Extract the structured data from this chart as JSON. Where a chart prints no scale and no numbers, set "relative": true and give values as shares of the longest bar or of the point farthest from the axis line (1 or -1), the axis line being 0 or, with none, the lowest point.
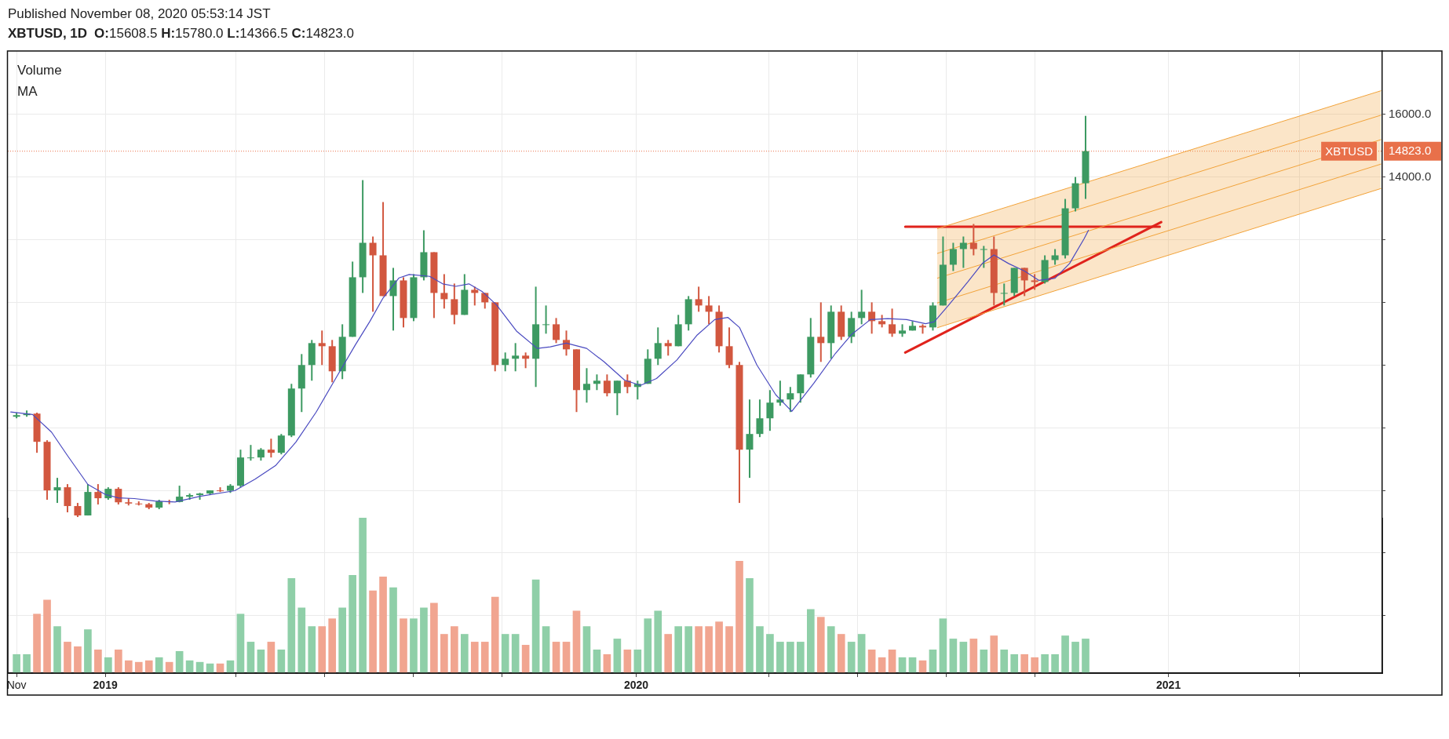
{
  "chart_data": [
    {
      "type": "candlestick",
      "title": "XBTUSD, 1D",
      "subtitle": "O:15608.5 H:15780.0 L:14366.5 C:14823.0",
      "annotations": [
        "Published November 08, 2020 05:53:14 JST",
        "Volume",
        "MA"
      ],
      "xlim": [
        "2018-10-26",
        "2021-05-28"
      ],
      "xticks": [
        {
          "value": "2018-11-01",
          "label": "Nov"
        },
        {
          "value": "2019-01-01",
          "label": "2019"
        },
        {
          "value": "2019-04-01",
          "label": null
        },
        {
          "value": "2019-06-01",
          "label": null
        },
        {
          "value": "2019-08-01",
          "label": null
        },
        {
          "value": "2019-10-01",
          "label": null
        },
        {
          "value": "2020-01-01",
          "label": "2020"
        },
        {
          "value": "2020-04-01",
          "label": null
        },
        {
          "value": "2020-06-01",
          "label": null
        },
        {
          "value": "2020-08-01",
          "label": null
        },
        {
          "value": "2020-10-01",
          "label": null
        },
        {
          "value": "2021-01-01",
          "label": "2021"
        },
        {
          "value": "2021-04-01",
          "label": null
        }
      ],
      "ylim": [
        -1830,
        18020
      ],
      "yticks": [
        {
          "value": 0,
          "label": null
        },
        {
          "value": 2000,
          "label": null
        },
        {
          "value": 4000,
          "label": null
        },
        {
          "value": 6000,
          "label": null
        },
        {
          "value": 8000,
          "label": null
        },
        {
          "value": 10000,
          "label": null
        },
        {
          "value": 12000,
          "label": null
        },
        {
          "value": 14000,
          "label": "14000.0"
        },
        {
          "value": 14823,
          "label": "14823.0"
        },
        {
          "value": 16000,
          "label": "16000.0"
        }
      ],
      "grid": true,
      "ref_lines": [
        {
          "axis": "y",
          "value": 14823,
          "label": "XBTUSD",
          "color": "#e8704a",
          "line_style": "dotted"
        }
      ],
      "x": [
        "2018-11-01",
        "2018-11-08",
        "2018-11-15",
        "2018-11-22",
        "2018-11-29",
        "2018-12-06",
        "2018-12-13",
        "2018-12-20",
        "2018-12-27",
        "2019-01-03",
        "2019-01-10",
        "2019-01-17",
        "2019-01-24",
        "2019-01-31",
        "2019-02-07",
        "2019-02-14",
        "2019-02-21",
        "2019-02-28",
        "2019-03-07",
        "2019-03-14",
        "2019-03-21",
        "2019-03-28",
        "2019-04-04",
        "2019-04-11",
        "2019-04-18",
        "2019-04-25",
        "2019-05-02",
        "2019-05-09",
        "2019-05-16",
        "2019-05-23",
        "2019-05-30",
        "2019-06-06",
        "2019-06-13",
        "2019-06-20",
        "2019-06-27",
        "2019-07-04",
        "2019-07-11",
        "2019-07-18",
        "2019-07-25",
        "2019-08-01",
        "2019-08-08",
        "2019-08-15",
        "2019-08-22",
        "2019-08-29",
        "2019-09-05",
        "2019-09-12",
        "2019-09-19",
        "2019-09-26",
        "2019-10-03",
        "2019-10-10",
        "2019-10-17",
        "2019-10-24",
        "2019-10-31",
        "2019-11-07",
        "2019-11-14",
        "2019-11-21",
        "2019-11-28",
        "2019-12-05",
        "2019-12-12",
        "2019-12-19",
        "2019-12-26",
        "2020-01-02",
        "2020-01-09",
        "2020-01-16",
        "2020-01-23",
        "2020-01-30",
        "2020-02-06",
        "2020-02-13",
        "2020-02-20",
        "2020-02-27",
        "2020-03-05",
        "2020-03-12",
        "2020-03-19",
        "2020-03-26",
        "2020-04-02",
        "2020-04-09",
        "2020-04-16",
        "2020-04-23",
        "2020-04-30",
        "2020-05-07",
        "2020-05-14",
        "2020-05-21",
        "2020-05-28",
        "2020-06-04",
        "2020-06-11",
        "2020-06-18",
        "2020-06-25",
        "2020-07-02",
        "2020-07-09",
        "2020-07-16",
        "2020-07-23",
        "2020-07-30",
        "2020-08-06",
        "2020-08-13",
        "2020-08-20",
        "2020-08-27",
        "2020-09-03",
        "2020-09-10",
        "2020-09-17",
        "2020-09-24",
        "2020-10-01",
        "2020-10-08",
        "2020-10-15",
        "2020-10-22",
        "2020-10-29",
        "2020-11-05"
      ],
      "series": [
        {
          "ohlc": [
            [
              6350,
              6480,
              6300,
              6400
            ],
            [
              6400,
              6550,
              6350,
              6450
            ],
            [
              6450,
              6480,
              5200,
              5550
            ],
            [
              5550,
              5600,
              3700,
              4000
            ],
            [
              4000,
              4400,
              3600,
              4100
            ],
            [
              4100,
              4200,
              3300,
              3500
            ],
            [
              3500,
              3600,
              3150,
              3200
            ],
            [
              3200,
              4200,
              3200,
              3950
            ],
            [
              3950,
              4200,
              3550,
              3750
            ],
            [
              3750,
              4100,
              3700,
              4050
            ],
            [
              4050,
              4100,
              3550,
              3620
            ],
            [
              3620,
              3750,
              3520,
              3580
            ],
            [
              3580,
              3650,
              3520,
              3560
            ],
            [
              3560,
              3600,
              3400,
              3450
            ],
            [
              3450,
              3700,
              3400,
              3650
            ],
            [
              3650,
              3700,
              3560,
              3630
            ],
            [
              3630,
              4150,
              3620,
              3800
            ],
            [
              3800,
              3900,
              3700,
              3850
            ],
            [
              3850,
              3920,
              3700,
              3900
            ],
            [
              3900,
              4000,
              3850,
              4000
            ],
            [
              4000,
              4100,
              3950,
              3990
            ],
            [
              3990,
              4200,
              3920,
              4150
            ],
            [
              4150,
              5300,
              4100,
              5050
            ],
            [
              5050,
              5450,
              4950,
              5050
            ],
            [
              5050,
              5350,
              4950,
              5300
            ],
            [
              5300,
              5650,
              5050,
              5200
            ],
            [
              5200,
              5800,
              5150,
              5750
            ],
            [
              5750,
              7400,
              5700,
              7250
            ],
            [
              7250,
              8350,
              6500,
              8000
            ],
            [
              8000,
              8800,
              7500,
              8700
            ],
            [
              8700,
              9100,
              8000,
              8600
            ],
            [
              8600,
              8800,
              7450,
              7800
            ],
            [
              7800,
              9300,
              7550,
              8900
            ],
            [
              8900,
              11300,
              8900,
              10800
            ],
            [
              10800,
              13900,
              10300,
              11900
            ],
            [
              11900,
              12100,
              9700,
              11500
            ],
            [
              11500,
              13200,
              10200,
              10200
            ],
            [
              10200,
              11100,
              9100,
              10700
            ],
            [
              10700,
              10800,
              9200,
              9500
            ],
            [
              9500,
              10900,
              9400,
              10800
            ],
            [
              10800,
              12300,
              10700,
              11600
            ],
            [
              11600,
              11600,
              9500,
              10300
            ],
            [
              10300,
              10900,
              9800,
              10100
            ],
            [
              10100,
              10600,
              9300,
              9600
            ],
            [
              9600,
              10900,
              9600,
              10400
            ],
            [
              10400,
              10500,
              9900,
              10300
            ],
            [
              10300,
              10300,
              9800,
              10000
            ],
            [
              10000,
              10000,
              7800,
              8000
            ],
            [
              8000,
              8400,
              7800,
              8200
            ],
            [
              8200,
              8700,
              7800,
              8300
            ],
            [
              8300,
              8400,
              7900,
              8200
            ],
            [
              8200,
              10500,
              7300,
              9300
            ],
            [
              9300,
              9900,
              9000,
              9300
            ],
            [
              9300,
              9500,
              8700,
              8800
            ],
            [
              8800,
              9100,
              8300,
              8500
            ],
            [
              8500,
              8500,
              6500,
              7200
            ],
            [
              7200,
              7900,
              6800,
              7400
            ],
            [
              7400,
              7700,
              7200,
              7500
            ],
            [
              7500,
              7700,
              7000,
              7100
            ],
            [
              7100,
              7500,
              6400,
              7500
            ],
            [
              7500,
              7700,
              7100,
              7300
            ],
            [
              7300,
              7500,
              6900,
              7400
            ],
            [
              7400,
              8500,
              7400,
              8200
            ],
            [
              8200,
              9200,
              8000,
              8700
            ],
            [
              8700,
              8800,
              8300,
              8600
            ],
            [
              8600,
              9600,
              8600,
              9300
            ],
            [
              9300,
              10200,
              9100,
              10100
            ],
            [
              10100,
              10500,
              9700,
              9900
            ],
            [
              9900,
              10200,
              9300,
              9700
            ],
            [
              9700,
              9900,
              8400,
              8600
            ],
            [
              8600,
              9200,
              7900,
              8000
            ],
            [
              8000,
              8100,
              3600,
              5300
            ],
            [
              5300,
              6900,
              4400,
              5800
            ],
            [
              5800,
              6900,
              5700,
              6300
            ],
            [
              6300,
              7200,
              5900,
              6800
            ],
            [
              6800,
              7500,
              6700,
              6900
            ],
            [
              6900,
              7300,
              6500,
              7100
            ],
            [
              7100,
              7700,
              6800,
              7700
            ],
            [
              7700,
              9500,
              7600,
              8900
            ],
            [
              8900,
              10000,
              8100,
              8700
            ],
            [
              8700,
              9900,
              8200,
              9700
            ],
            [
              9700,
              9900,
              8800,
              8900
            ],
            [
              8900,
              9700,
              8700,
              9500
            ],
            [
              9500,
              10400,
              9300,
              9700
            ],
            [
              9700,
              10000,
              9000,
              9400
            ],
            [
              9400,
              9600,
              9200,
              9300
            ],
            [
              9300,
              9800,
              8900,
              9000
            ],
            [
              9000,
              9300,
              8900,
              9100
            ],
            [
              9100,
              9400,
              9100,
              9250
            ],
            [
              9250,
              9300,
              9000,
              9200
            ],
            [
              9200,
              10000,
              9100,
              9900
            ],
            [
              9900,
              12100,
              9900,
              11200
            ],
            [
              11200,
              11900,
              11000,
              11700
            ],
            [
              11700,
              12100,
              11100,
              11900
            ],
            [
              11900,
              12500,
              11500,
              11700
            ],
            [
              11700,
              11800,
              11100,
              11700
            ],
            [
              11700,
              12100,
              9900,
              10300
            ],
            [
              10300,
              10600,
              9900,
              10300
            ],
            [
              10300,
              11100,
              10200,
              11100
            ],
            [
              11100,
              11100,
              10200,
              10700
            ],
            [
              10700,
              10900,
              10400,
              10650
            ],
            [
              10650,
              11500,
              10600,
              11350
            ],
            [
              11350,
              11700,
              11200,
              11500
            ],
            [
              11500,
              13300,
              11400,
              13000
            ],
            [
              13000,
              14000,
              12900,
              13800
            ],
            [
              13800,
              15950,
              13300,
              14823
            ]
          ],
          "colors": [
            "#3d9a62",
            "#3d9a62",
            "#d2573f",
            "#d2573f",
            "#3d9a62",
            "#d2573f",
            "#d2573f",
            "#3d9a62",
            "#d2573f",
            "#3d9a62",
            "#d2573f",
            "#d2573f",
            "#d2573f",
            "#d2573f",
            "#3d9a62",
            "#d2573f",
            "#3d9a62",
            "#3d9a62",
            "#3d9a62",
            "#3d9a62",
            "#d2573f",
            "#3d9a62",
            "#3d9a62",
            "#3d9a62",
            "#3d9a62",
            "#d2573f",
            "#3d9a62",
            "#3d9a62",
            "#3d9a62",
            "#3d9a62",
            "#d2573f",
            "#d2573f",
            "#3d9a62",
            "#3d9a62",
            "#3d9a62",
            "#d2573f",
            "#d2573f",
            "#3d9a62",
            "#d2573f",
            "#3d9a62",
            "#3d9a62",
            "#d2573f",
            "#d2573f",
            "#d2573f",
            "#3d9a62",
            "#d2573f",
            "#d2573f",
            "#d2573f",
            "#3d9a62",
            "#3d9a62",
            "#d2573f",
            "#3d9a62",
            "#3d9a62",
            "#d2573f",
            "#d2573f",
            "#d2573f",
            "#3d9a62",
            "#3d9a62",
            "#d2573f",
            "#3d9a62",
            "#d2573f",
            "#3d9a62",
            "#3d9a62",
            "#3d9a62",
            "#d2573f",
            "#3d9a62",
            "#3d9a62",
            "#d2573f",
            "#d2573f",
            "#d2573f",
            "#d2573f",
            "#d2573f",
            "#3d9a62",
            "#3d9a62",
            "#3d9a62",
            "#3d9a62",
            "#3d9a62",
            "#3d9a62",
            "#3d9a62",
            "#d2573f",
            "#3d9a62",
            "#d2573f",
            "#3d9a62",
            "#3d9a62",
            "#d2573f",
            "#d2573f",
            "#d2573f",
            "#3d9a62",
            "#3d9a62",
            "#d2573f",
            "#3d9a62",
            "#3d9a62",
            "#3d9a62",
            "#3d9a62",
            "#d2573f",
            "#3d9a62",
            "#d2573f",
            "#3d9a62",
            "#3d9a62",
            "#d2573f",
            "#d2573f",
            "#3d9a62",
            "#3d9a62",
            "#3d9a62",
            "#3d9a62",
            "#3d9a62"
          ]
        },
        {
          "type": "line",
          "color": "#4a4ac0",
          "x": [
            "2018-10-28",
            "2018-11-12",
            "2018-11-25",
            "2018-12-06",
            "2018-12-20",
            "2019-01-01",
            "2019-01-10",
            "2019-01-21",
            "2019-02-04",
            "2019-02-18",
            "2019-03-08",
            "2019-03-31",
            "2019-04-14",
            "2019-04-28",
            "2019-05-12",
            "2019-05-26",
            "2019-06-09",
            "2019-06-22",
            "2019-07-02",
            "2019-07-11",
            "2019-07-22",
            "2019-07-29",
            "2019-08-12",
            "2019-08-21",
            "2019-08-30",
            "2019-09-08",
            "2019-09-17",
            "2019-09-27",
            "2019-10-11",
            "2019-10-25",
            "2019-11-03",
            "2019-11-14",
            "2019-11-28",
            "2019-12-10",
            "2019-12-24",
            "2020-01-04",
            "2020-01-15",
            "2020-01-29",
            "2020-02-12",
            "2020-02-24",
            "2020-03-04",
            "2020-03-12",
            "2020-03-24",
            "2020-04-06",
            "2020-04-17",
            "2020-05-02",
            "2020-05-17",
            "2020-05-28",
            "2020-06-10",
            "2020-06-22",
            "2020-07-05",
            "2020-07-18",
            "2020-07-24",
            "2020-08-03",
            "2020-08-16",
            "2020-08-26",
            "2020-09-03",
            "2020-09-13",
            "2020-09-24",
            "2020-10-04",
            "2020-10-15",
            "2020-10-25",
            "2020-11-04",
            "2020-11-07"
          ],
          "values": [
            6500,
            6420,
            5860,
            5110,
            4190,
            3870,
            3760,
            3740,
            3660,
            3630,
            3820,
            3990,
            4360,
            4790,
            5540,
            6500,
            7620,
            8650,
            9400,
            10140,
            10780,
            10890,
            10830,
            10590,
            10510,
            10590,
            10350,
            9920,
            9070,
            8530,
            8580,
            8700,
            8530,
            8100,
            7520,
            7350,
            7570,
            8160,
            8960,
            9450,
            9520,
            9200,
            8000,
            7050,
            6520,
            7410,
            8370,
            8970,
            9450,
            9480,
            9450,
            9320,
            9380,
            9920,
            10650,
            11240,
            11510,
            11240,
            11000,
            10700,
            10770,
            11240,
            12030,
            12300
          ]
        },
        {
          "type": "line",
          "color": "#f2a33a",
          "x": [
            "2020-07-26",
            "2021-05-27"
          ],
          "values": [
            10770,
            15190
          ],
          "lower": [
            9190,
            13630
          ],
          "upper": [
            12350,
            16750
          ]
        },
        {
          "type": "line",
          "color": "#f2a33a",
          "x": [
            "2020-07-26",
            "2021-05-27"
          ],
          "values": [
            12350,
            16750
          ]
        },
        {
          "type": "line",
          "color": "#f2a33a",
          "x": [
            "2020-07-26",
            "2021-05-27"
          ],
          "values": [
            9190,
            13630
          ]
        },
        {
          "type": "line",
          "color": "#f2a33a",
          "x": [
            "2020-07-26",
            "2021-05-27"
          ],
          "values": [
            9980,
            14410
          ]
        },
        {
          "type": "line",
          "color": "#f2a33a",
          "x": [
            "2020-07-26",
            "2021-05-27"
          ],
          "values": [
            11560,
            15970
          ]
        },
        {
          "type": "line",
          "color": "#e0231c",
          "x": [
            "2020-07-04",
            "2020-12-26"
          ],
          "values": [
            12410,
            12410
          ]
        },
        {
          "type": "line",
          "color": "#e0231c",
          "x": [
            "2020-07-04",
            "2020-12-27"
          ],
          "values": [
            8400,
            12560
          ]
        }
      ]
    },
    {
      "type": "bar",
      "relative": true,
      "xlim": [
        "2018-10-26",
        "2021-05-28"
      ],
      "x": [
        "2018-11-01",
        "2018-11-08",
        "2018-11-15",
        "2018-11-22",
        "2018-11-29",
        "2018-12-06",
        "2018-12-13",
        "2018-12-20",
        "2018-12-27",
        "2019-01-03",
        "2019-01-10",
        "2019-01-17",
        "2019-01-24",
        "2019-01-31",
        "2019-02-07",
        "2019-02-14",
        "2019-02-21",
        "2019-02-28",
        "2019-03-07",
        "2019-03-14",
        "2019-03-21",
        "2019-03-28",
        "2019-04-04",
        "2019-04-11",
        "2019-04-18",
        "2019-04-25",
        "2019-05-02",
        "2019-05-09",
        "2019-05-16",
        "2019-05-23",
        "2019-05-30",
        "2019-06-06",
        "2019-06-13",
        "2019-06-20",
        "2019-06-27",
        "2019-07-04",
        "2019-07-11",
        "2019-07-18",
        "2019-07-25",
        "2019-08-01",
        "2019-08-08",
        "2019-08-15",
        "2019-08-22",
        "2019-08-29",
        "2019-09-05",
        "2019-09-12",
        "2019-09-19",
        "2019-09-26",
        "2019-10-03",
        "2019-10-10",
        "2019-10-17",
        "2019-10-24",
        "2019-10-31",
        "2019-11-07",
        "2019-11-14",
        "2019-11-21",
        "2019-11-28",
        "2019-12-05",
        "2019-12-12",
        "2019-12-19",
        "2019-12-26",
        "2020-01-02",
        "2020-01-09",
        "2020-01-16",
        "2020-01-23",
        "2020-01-30",
        "2020-02-06",
        "2020-02-13",
        "2020-02-20",
        "2020-02-27",
        "2020-03-05",
        "2020-03-12",
        "2020-03-19",
        "2020-03-26",
        "2020-04-02",
        "2020-04-09",
        "2020-04-16",
        "2020-04-23",
        "2020-04-30",
        "2020-05-07",
        "2020-05-14",
        "2020-05-21",
        "2020-05-28",
        "2020-06-04",
        "2020-06-11",
        "2020-06-18",
        "2020-06-25",
        "2020-07-02",
        "2020-07-09",
        "2020-07-16",
        "2020-07-23",
        "2020-07-30",
        "2020-08-06",
        "2020-08-13",
        "2020-08-20",
        "2020-08-27",
        "2020-09-03",
        "2020-09-10",
        "2020-09-17",
        "2020-09-24",
        "2020-10-01",
        "2020-10-08",
        "2020-10-15",
        "2020-10-22",
        "2020-10-29",
        "2020-11-05"
      ],
      "values": [
        0.12,
        0.12,
        0.38,
        0.47,
        0.3,
        0.2,
        0.17,
        0.28,
        0.15,
        0.1,
        0.15,
        0.08,
        0.07,
        0.08,
        0.1,
        0.07,
        0.14,
        0.08,
        0.07,
        0.06,
        0.06,
        0.08,
        0.38,
        0.2,
        0.15,
        0.2,
        0.15,
        0.61,
        0.42,
        0.3,
        0.3,
        0.35,
        0.42,
        0.63,
        1,
        0.53,
        0.62,
        0.55,
        0.35,
        0.35,
        0.42,
        0.45,
        0.25,
        0.3,
        0.25,
        0.2,
        0.2,
        0.49,
        0.25,
        0.25,
        0.18,
        0.6,
        0.3,
        0.2,
        0.2,
        0.4,
        0.3,
        0.15,
        0.12,
        0.22,
        0.15,
        0.15,
        0.35,
        0.4,
        0.25,
        0.3,
        0.3,
        0.3,
        0.3,
        0.33,
        0.3,
        0.72,
        0.61,
        0.3,
        0.25,
        0.2,
        0.2,
        0.2,
        0.41,
        0.36,
        0.3,
        0.25,
        0.2,
        0.25,
        0.15,
        0.1,
        0.15,
        0.1,
        0.1,
        0.08,
        0.15,
        0.35,
        0.22,
        0.2,
        0.22,
        0.15,
        0.24,
        0.15,
        0.12,
        0.12,
        0.1,
        0.12,
        0.12,
        0.24,
        0.2,
        0.22
      ],
      "colors": [
        "#8fcfa8",
        "#8fcfa8",
        "#f1a590",
        "#f1a590",
        "#8fcfa8",
        "#f1a590",
        "#f1a590",
        "#8fcfa8",
        "#f1a590",
        "#8fcfa8",
        "#f1a590",
        "#f1a590",
        "#f1a590",
        "#f1a590",
        "#8fcfa8",
        "#f1a590",
        "#8fcfa8",
        "#8fcfa8",
        "#8fcfa8",
        "#8fcfa8",
        "#f1a590",
        "#8fcfa8",
        "#8fcfa8",
        "#8fcfa8",
        "#8fcfa8",
        "#f1a590",
        "#8fcfa8",
        "#8fcfa8",
        "#8fcfa8",
        "#8fcfa8",
        "#f1a590",
        "#f1a590",
        "#8fcfa8",
        "#8fcfa8",
        "#8fcfa8",
        "#f1a590",
        "#f1a590",
        "#8fcfa8",
        "#f1a590",
        "#8fcfa8",
        "#8fcfa8",
        "#f1a590",
        "#f1a590",
        "#f1a590",
        "#8fcfa8",
        "#f1a590",
        "#f1a590",
        "#f1a590",
        "#8fcfa8",
        "#8fcfa8",
        "#f1a590",
        "#8fcfa8",
        "#8fcfa8",
        "#f1a590",
        "#f1a590",
        "#f1a590",
        "#8fcfa8",
        "#8fcfa8",
        "#f1a590",
        "#8fcfa8",
        "#f1a590",
        "#8fcfa8",
        "#8fcfa8",
        "#8fcfa8",
        "#f1a590",
        "#8fcfa8",
        "#8fcfa8",
        "#f1a590",
        "#f1a590",
        "#f1a590",
        "#f1a590",
        "#f1a590",
        "#8fcfa8",
        "#8fcfa8",
        "#8fcfa8",
        "#8fcfa8",
        "#8fcfa8",
        "#8fcfa8",
        "#8fcfa8",
        "#f1a590",
        "#8fcfa8",
        "#f1a590",
        "#8fcfa8",
        "#8fcfa8",
        "#f1a590",
        "#f1a590",
        "#f1a590",
        "#8fcfa8",
        "#8fcfa8",
        "#f1a590",
        "#8fcfa8",
        "#8fcfa8",
        "#8fcfa8",
        "#8fcfa8",
        "#f1a590",
        "#8fcfa8",
        "#f1a590",
        "#8fcfa8",
        "#8fcfa8",
        "#f1a590",
        "#f1a590",
        "#8fcfa8",
        "#8fcfa8",
        "#8fcfa8",
        "#8fcfa8",
        "#8fcfa8"
      ]
    }
  ]
}
